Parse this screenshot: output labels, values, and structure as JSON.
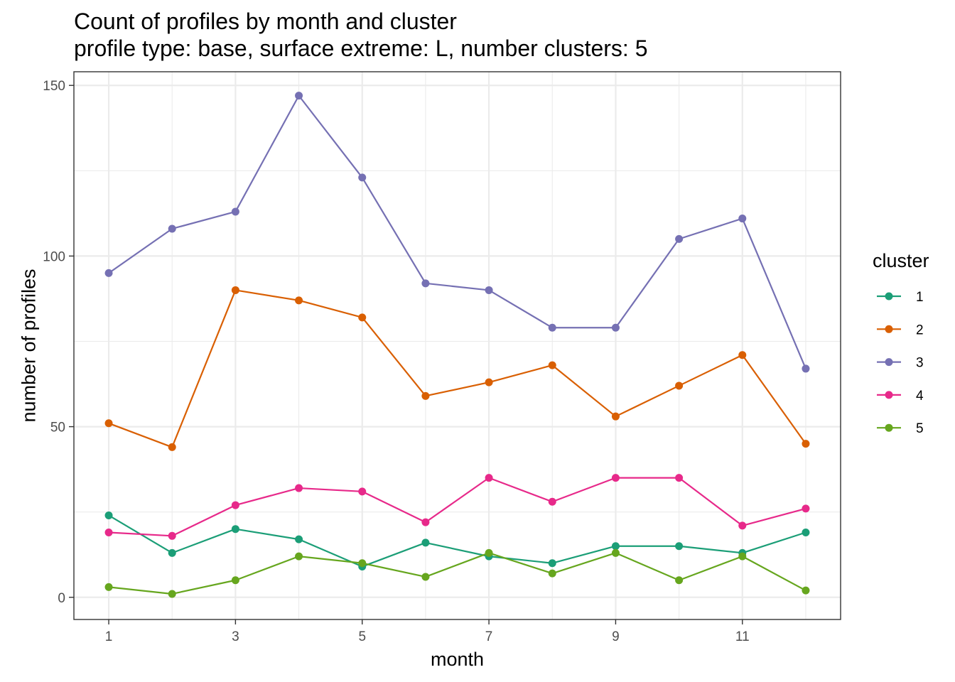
{
  "chart_data": {
    "type": "line",
    "title": "Count of profiles by month and cluster",
    "subtitle": "profile type: base, surface extreme: L, number clusters: 5",
    "xlabel": "month",
    "ylabel": "number of profiles",
    "x": [
      1,
      2,
      3,
      4,
      5,
      6,
      7,
      8,
      9,
      10,
      11,
      12
    ],
    "xticks": [
      1,
      3,
      5,
      7,
      9,
      11
    ],
    "yticks": [
      0,
      50,
      100,
      150
    ],
    "xlim": [
      0.45,
      12.55
    ],
    "ylim": [
      -6.5,
      154
    ],
    "grid": true,
    "legend_title": "cluster",
    "legend_position": "right",
    "series": [
      {
        "name": "1",
        "color": "#1B9E77",
        "values": [
          24,
          13,
          20,
          17,
          9,
          16,
          12,
          10,
          15,
          15,
          13,
          19
        ]
      },
      {
        "name": "2",
        "color": "#D95F02",
        "values": [
          51,
          44,
          90,
          87,
          82,
          59,
          63,
          68,
          53,
          62,
          71,
          45
        ]
      },
      {
        "name": "3",
        "color": "#7570B3",
        "values": [
          95,
          108,
          113,
          147,
          123,
          92,
          90,
          79,
          79,
          105,
          111,
          67
        ]
      },
      {
        "name": "4",
        "color": "#E7298A",
        "values": [
          19,
          18,
          27,
          32,
          31,
          22,
          35,
          28,
          35,
          35,
          21,
          26
        ]
      },
      {
        "name": "5",
        "color": "#66A61E",
        "values": [
          3,
          1,
          5,
          12,
          10,
          6,
          13,
          7,
          13,
          5,
          12,
          2
        ]
      }
    ]
  }
}
